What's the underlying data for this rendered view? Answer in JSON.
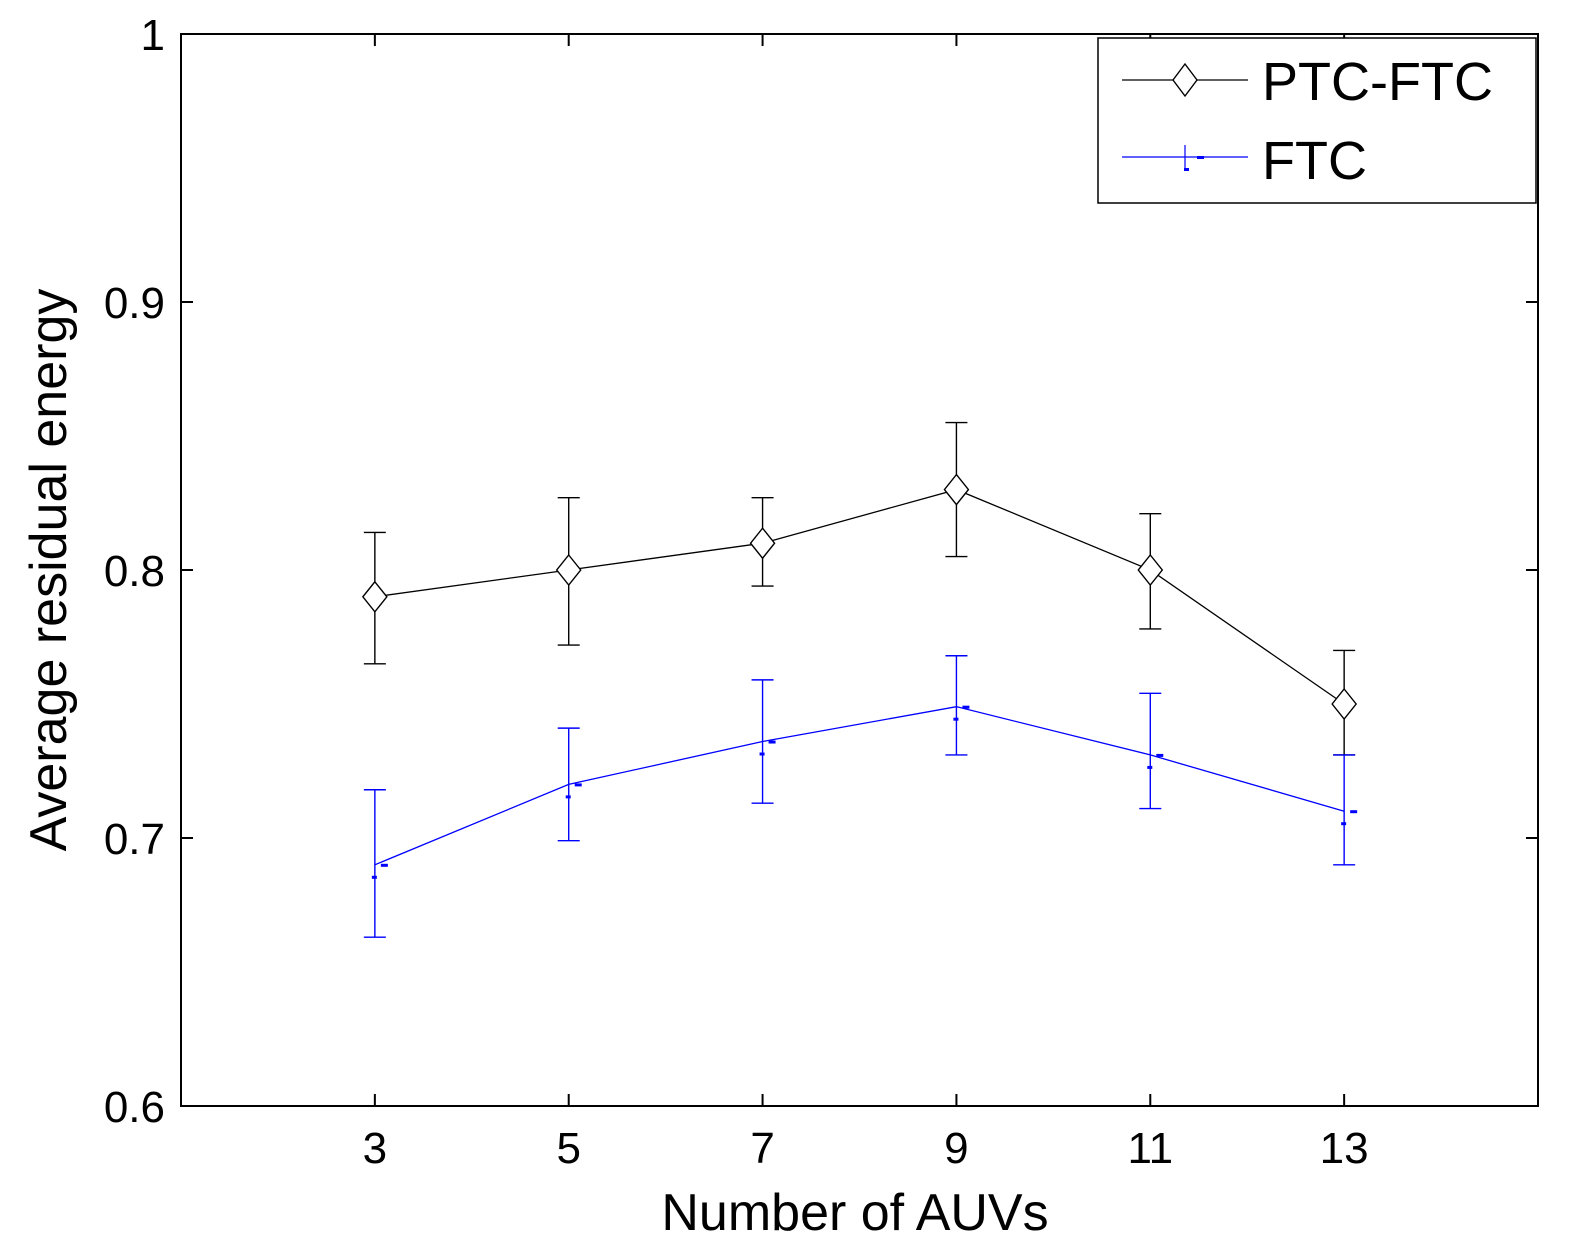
{
  "chart_data": {
    "type": "line",
    "xlabel": "Number of AUVs",
    "ylabel": "Average residual energy",
    "xlim": [
      1,
      15
    ],
    "ylim": [
      0.6,
      1.0
    ],
    "xticks": [
      3,
      5,
      7,
      9,
      11,
      13
    ],
    "yticks": [
      {
        "value": 0.6,
        "label": "0.6"
      },
      {
        "value": 0.7,
        "label": "0.7"
      },
      {
        "value": 0.8,
        "label": "0.8"
      },
      {
        "value": 0.9,
        "label": "0.9"
      },
      {
        "value": 1.0,
        "label": "1"
      }
    ],
    "legend_position": "top-right",
    "series": [
      {
        "name": "PTC-FTC",
        "color": "#000000",
        "marker": "diamond",
        "x": [
          3,
          5,
          7,
          9,
          11,
          13
        ],
        "values": [
          0.79,
          0.8,
          0.81,
          0.83,
          0.8,
          0.75
        ],
        "error_low": [
          0.765,
          0.772,
          0.794,
          0.805,
          0.778,
          0.731
        ],
        "error_high": [
          0.814,
          0.827,
          0.827,
          0.855,
          0.821,
          0.77
        ]
      },
      {
        "name": "FTC",
        "color": "#0000ff",
        "marker": "dash",
        "x": [
          3,
          5,
          7,
          9,
          11,
          13
        ],
        "values": [
          0.69,
          0.72,
          0.736,
          0.749,
          0.731,
          0.71
        ],
        "error_low": [
          0.663,
          0.699,
          0.713,
          0.731,
          0.711,
          0.69
        ],
        "error_high": [
          0.718,
          0.741,
          0.759,
          0.768,
          0.754,
          0.731
        ]
      }
    ]
  }
}
